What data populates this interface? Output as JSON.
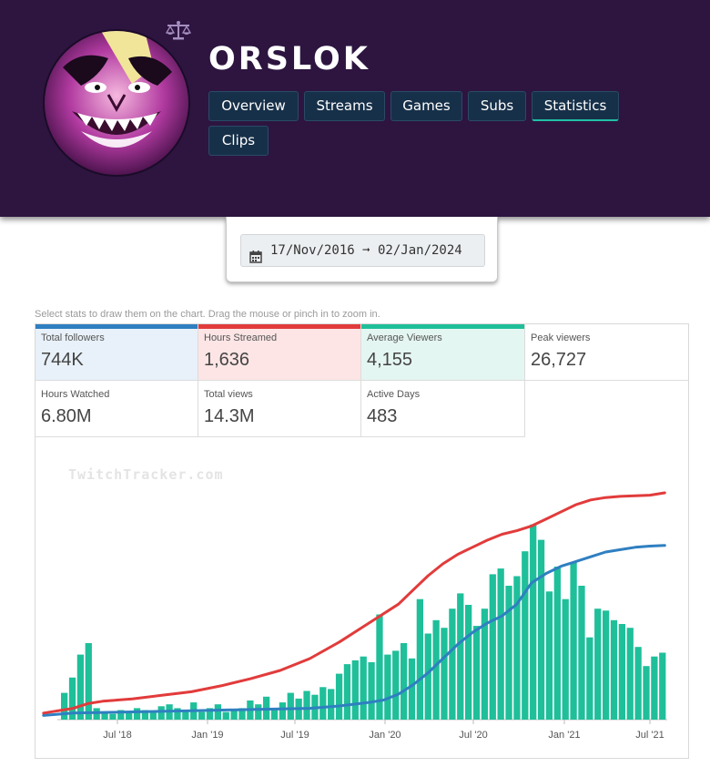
{
  "channel": {
    "name": "ORSLOK"
  },
  "nav": {
    "tabs": [
      {
        "label": "Overview"
      },
      {
        "label": "Streams"
      },
      {
        "label": "Games"
      },
      {
        "label": "Subs"
      },
      {
        "label": "Statistics",
        "active": true
      },
      {
        "label": "Clips"
      }
    ]
  },
  "date_range": {
    "text": "17/Nov/2016 ➞ 02/Jan/2024"
  },
  "hint": "Select stats to draw them on the chart. Drag the mouse or pinch in to zoom in.",
  "stats": [
    {
      "label": "Total followers",
      "value": "744K",
      "color": "#2f7fc1",
      "selected": true
    },
    {
      "label": "Hours Streamed",
      "value": "1,636",
      "color": "#e23b3b",
      "selected": true
    },
    {
      "label": "Average Viewers",
      "value": "4,155",
      "color": "#1fbf9a",
      "selected": true
    },
    {
      "label": "Peak viewers",
      "value": "26,727"
    },
    {
      "label": "Hours Watched",
      "value": "6.80M"
    },
    {
      "label": "Total views",
      "value": "14.3M"
    },
    {
      "label": "Active Days",
      "value": "483"
    }
  ],
  "watermark": "TwitchTracker.com",
  "colors": {
    "header_bg": "#2d1540",
    "nav_button": "#173049",
    "followers": "#2f7fc1",
    "hours": "#e23b3b",
    "viewers": "#1fbf9a"
  },
  "chart_data": {
    "type": "bar",
    "x_ticks": [
      "Jul '18",
      "Jan '19",
      "Jul '19",
      "Jan '20",
      "Jul '20",
      "Jan '21",
      "Jul '21"
    ],
    "x_range": [
      "Feb '18",
      "Aug '21"
    ],
    "grid": false,
    "legend": "none",
    "series": [
      {
        "name": "Total followers",
        "type": "line",
        "color": "#2f7fc1",
        "points": [
          [
            0,
            2
          ],
          [
            2,
            4
          ],
          [
            4,
            4.5
          ],
          [
            6,
            5
          ],
          [
            10,
            6
          ],
          [
            14,
            7
          ],
          [
            18,
            8
          ],
          [
            20,
            10
          ],
          [
            22,
            13
          ],
          [
            23,
            15
          ],
          [
            24,
            20
          ],
          [
            25,
            28
          ],
          [
            26,
            38
          ],
          [
            27,
            50
          ],
          [
            28,
            62
          ],
          [
            29,
            72
          ],
          [
            30,
            80
          ],
          [
            31,
            86
          ],
          [
            32,
            96
          ],
          [
            33,
            114
          ],
          [
            34,
            122
          ],
          [
            35,
            128
          ],
          [
            36,
            132
          ],
          [
            37,
            136
          ],
          [
            38,
            140
          ],
          [
            39,
            142
          ],
          [
            40,
            144
          ],
          [
            41,
            145
          ],
          [
            42,
            145.5
          ]
        ]
      },
      {
        "name": "Hours Streamed",
        "type": "line",
        "color": "#e23b3b",
        "points": [
          [
            0,
            4
          ],
          [
            2,
            8
          ],
          [
            3,
            12
          ],
          [
            4,
            14
          ],
          [
            6,
            16
          ],
          [
            8,
            19
          ],
          [
            10,
            22
          ],
          [
            12,
            27
          ],
          [
            14,
            33
          ],
          [
            16,
            40
          ],
          [
            18,
            50
          ],
          [
            20,
            64
          ],
          [
            22,
            80
          ],
          [
            24,
            96
          ],
          [
            25,
            108
          ],
          [
            26,
            120
          ],
          [
            27,
            130
          ],
          [
            28,
            138
          ],
          [
            29,
            144
          ],
          [
            30,
            150
          ],
          [
            31,
            155
          ],
          [
            32,
            158
          ],
          [
            33,
            162
          ],
          [
            34,
            168
          ],
          [
            35,
            174
          ],
          [
            36,
            180
          ],
          [
            37,
            184
          ],
          [
            38,
            186
          ],
          [
            39,
            187
          ],
          [
            40,
            187.5
          ],
          [
            41,
            188
          ],
          [
            42,
            190
          ]
        ]
      },
      {
        "name": "Average Viewers",
        "type": "bar",
        "color": "#1fbf9a",
        "values": [
          14,
          22,
          34,
          40,
          6,
          4,
          3,
          5,
          4,
          6,
          5,
          4,
          7,
          8,
          6,
          5,
          9,
          4,
          6,
          8,
          4,
          5,
          6,
          10,
          8,
          12,
          6,
          9,
          14,
          11,
          15,
          13,
          17,
          16,
          24,
          29,
          31,
          33,
          30,
          55,
          34,
          36,
          40,
          32,
          63,
          45,
          52,
          48,
          58,
          66,
          60,
          49,
          58,
          76,
          79,
          70,
          75,
          88,
          102,
          94,
          67,
          80,
          63,
          82,
          70,
          43,
          58,
          57,
          52,
          50,
          48,
          38,
          28,
          33,
          35
        ]
      }
    ]
  }
}
